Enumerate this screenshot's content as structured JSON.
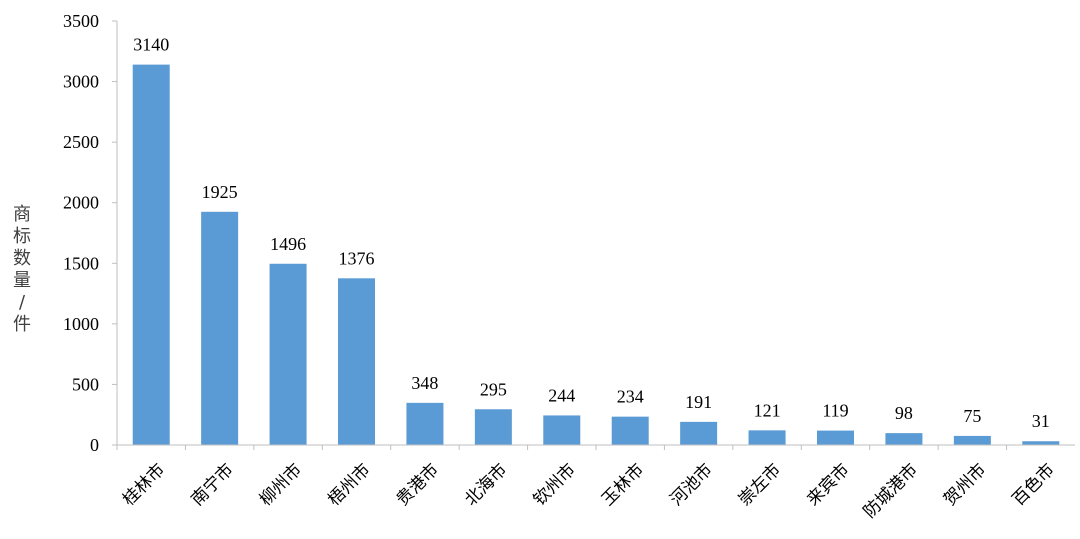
{
  "chart_data": {
    "type": "bar",
    "title": "",
    "xlabel": "",
    "ylabel": "商标数量/件",
    "ylim": [
      0,
      3500
    ],
    "yticks": [
      0,
      500,
      1000,
      1500,
      2000,
      2500,
      3000,
      3500
    ],
    "grid": false,
    "legend": "none",
    "categories": [
      "桂林市",
      "南宁市",
      "柳州市",
      "梧州市",
      "贵港市",
      "北海市",
      "钦州市",
      "玉林市",
      "河池市",
      "崇左市",
      "来宾市",
      "防城港市",
      "贺州市",
      "百色市"
    ],
    "values": [
      3140,
      1925,
      1496,
      1376,
      348,
      295,
      244,
      234,
      191,
      121,
      119,
      98,
      75,
      31
    ],
    "data_labels": [
      "3140",
      "1925",
      "1496",
      "1376",
      "348",
      "295",
      "244",
      "234",
      "191",
      "121",
      "119",
      "98",
      "75",
      "31"
    ],
    "bar_color": "#5B9BD5",
    "axis_color": "#BFBFBF"
  }
}
